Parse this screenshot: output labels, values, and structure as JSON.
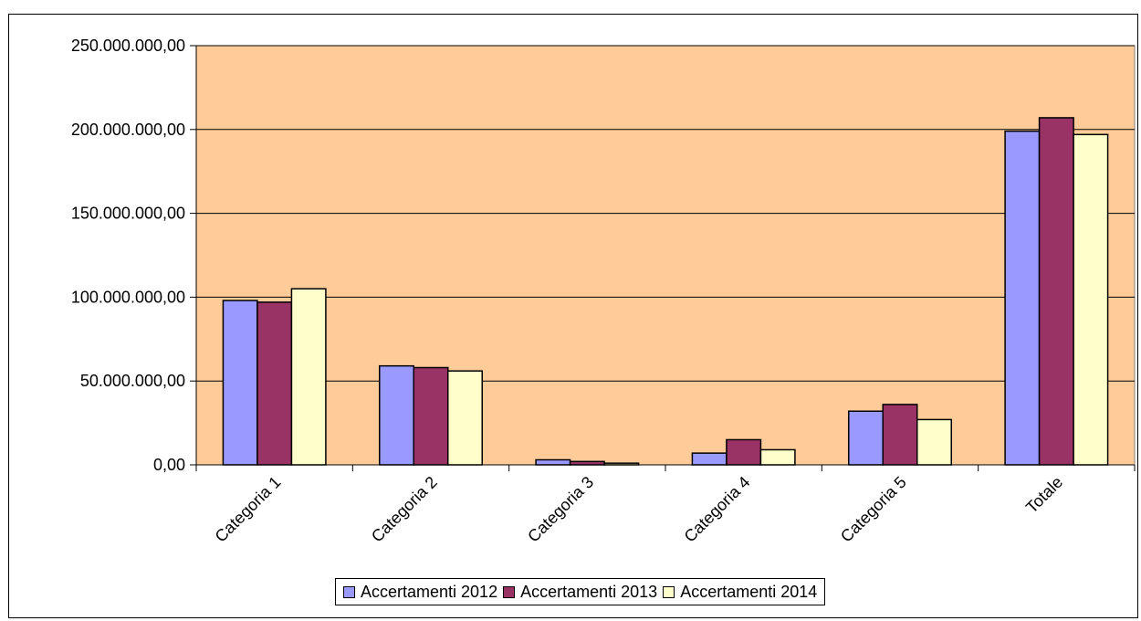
{
  "chart_data": {
    "type": "bar",
    "title": "",
    "xlabel": "",
    "ylabel": "",
    "categories": [
      "Categoria 1",
      "Categoria 2",
      "Categoria 3",
      "Categoria 4",
      "Categoria 5",
      "Totale"
    ],
    "series": [
      {
        "name": "Accertamenti 2012",
        "color": "#9999FF",
        "values": [
          98000000,
          59000000,
          3000000,
          7000000,
          32000000,
          199000000
        ]
      },
      {
        "name": "Accertamenti 2013",
        "color": "#993366",
        "values": [
          97000000,
          58000000,
          2000000,
          15000000,
          36000000,
          207000000
        ]
      },
      {
        "name": "Accertamenti 2014",
        "color": "#FFFFCC",
        "values": [
          105000000,
          56000000,
          1000000,
          9000000,
          27000000,
          197000000
        ]
      }
    ],
    "ylim": [
      0,
      250000000
    ],
    "y_ticks": [
      {
        "value": 0,
        "label": "0,00"
      },
      {
        "value": 50000000,
        "label": "50.000.000,00"
      },
      {
        "value": 100000000,
        "label": "100.000.000,00"
      },
      {
        "value": 150000000,
        "label": "150.000.000,00"
      },
      {
        "value": 200000000,
        "label": "200.000.000,00"
      },
      {
        "value": 250000000,
        "label": "250.000.000,00"
      }
    ],
    "grid": true,
    "plot_background": "#FFCC99",
    "legend_position": "bottom"
  }
}
